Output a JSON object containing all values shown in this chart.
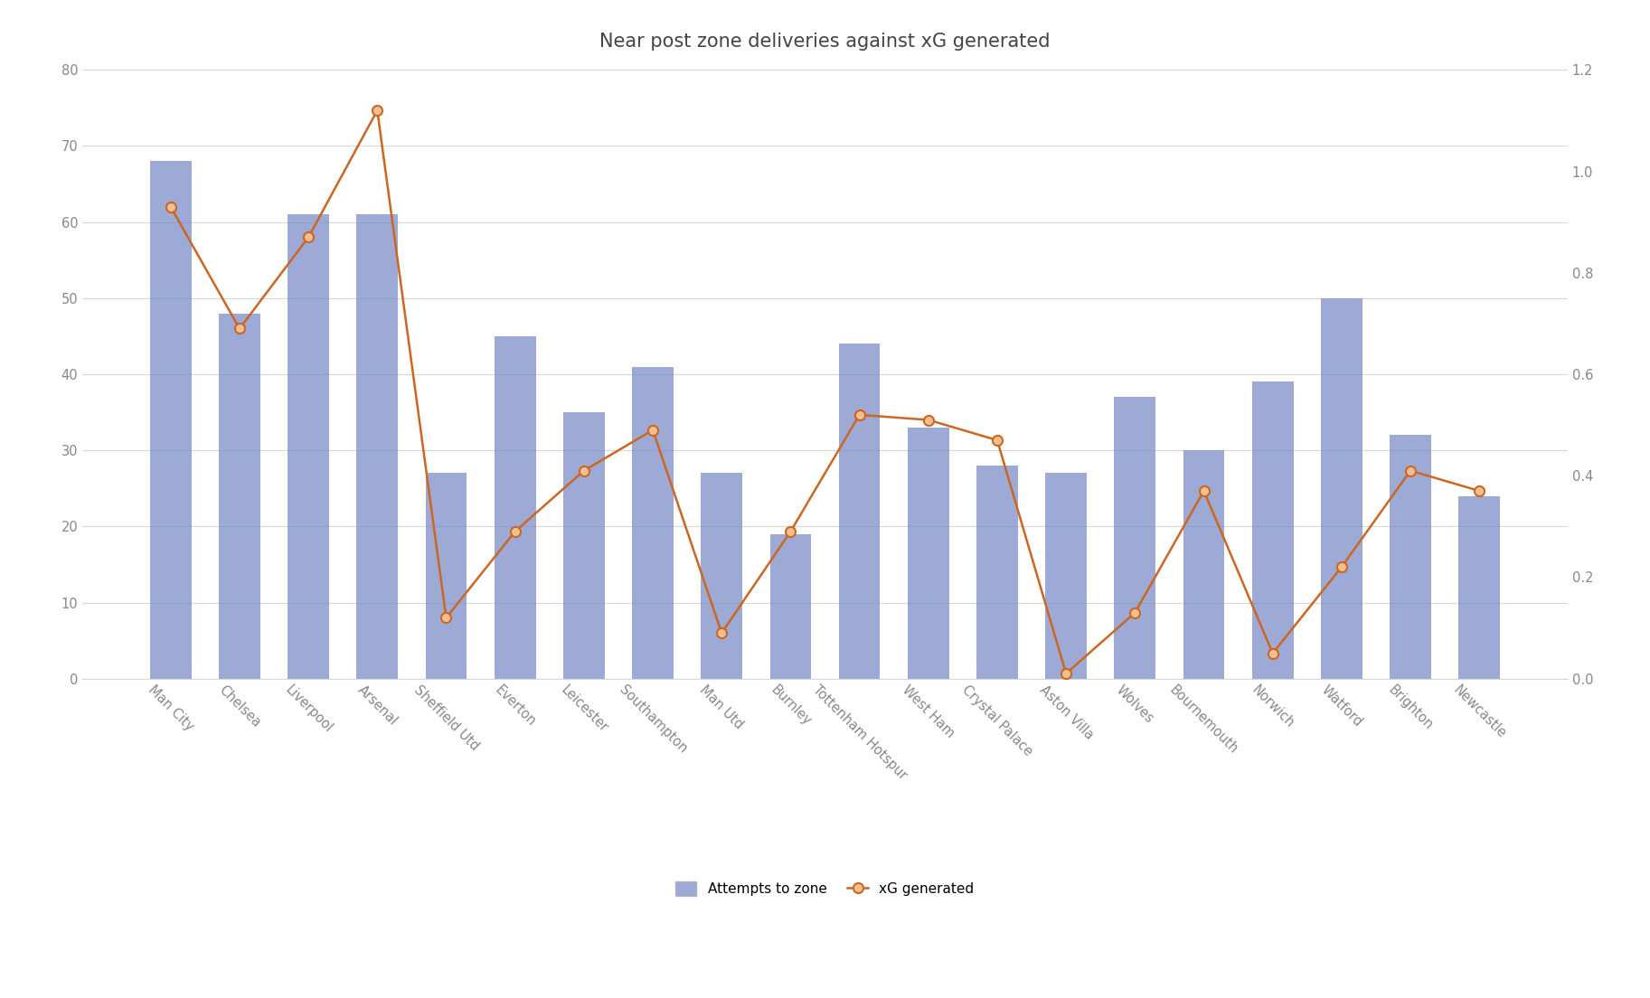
{
  "title": "Near post zone deliveries against xG generated",
  "categories": [
    "Man City",
    "Chelsea",
    "Liverpool",
    "Arsenal",
    "Sheffield Utd",
    "Everton",
    "Leicester",
    "Southampton",
    "Man Utd",
    "Burnley",
    "Tottenham Hotspur",
    "West Ham",
    "Crystal Palace",
    "Aston Villa",
    "Wolves",
    "Bournemouth",
    "Norwich",
    "Watford",
    "Brighton",
    "Newcastle"
  ],
  "attempts": [
    68,
    48,
    61,
    61,
    27,
    45,
    35,
    41,
    27,
    19,
    44,
    33,
    28,
    27,
    37,
    30,
    39,
    50,
    32,
    24
  ],
  "xg": [
    0.93,
    0.69,
    0.87,
    1.12,
    0.12,
    0.29,
    0.41,
    0.49,
    0.09,
    0.29,
    0.52,
    0.51,
    0.47,
    0.01,
    0.13,
    0.37,
    0.05,
    0.22,
    0.41,
    0.37
  ],
  "bar_color": "#7b8ec8",
  "bar_alpha": 0.75,
  "line_color": "#cc6622",
  "marker_color": "#cc6622",
  "marker_face_color": "#f0c090",
  "background_color": "#ffffff",
  "left_ylim": [
    0,
    80
  ],
  "right_ylim": [
    0,
    1.2
  ],
  "left_yticks": [
    0,
    10,
    20,
    30,
    40,
    50,
    60,
    70,
    80
  ],
  "right_yticks": [
    0,
    0.2,
    0.4,
    0.6,
    0.8,
    1.0,
    1.2
  ],
  "legend_bar_label": "Attempts to zone",
  "legend_line_label": "xG generated",
  "title_fontsize": 15,
  "tick_fontsize": 10.5,
  "legend_fontsize": 11,
  "grid_color": "#d8d8d8",
  "text_color": "#888888"
}
